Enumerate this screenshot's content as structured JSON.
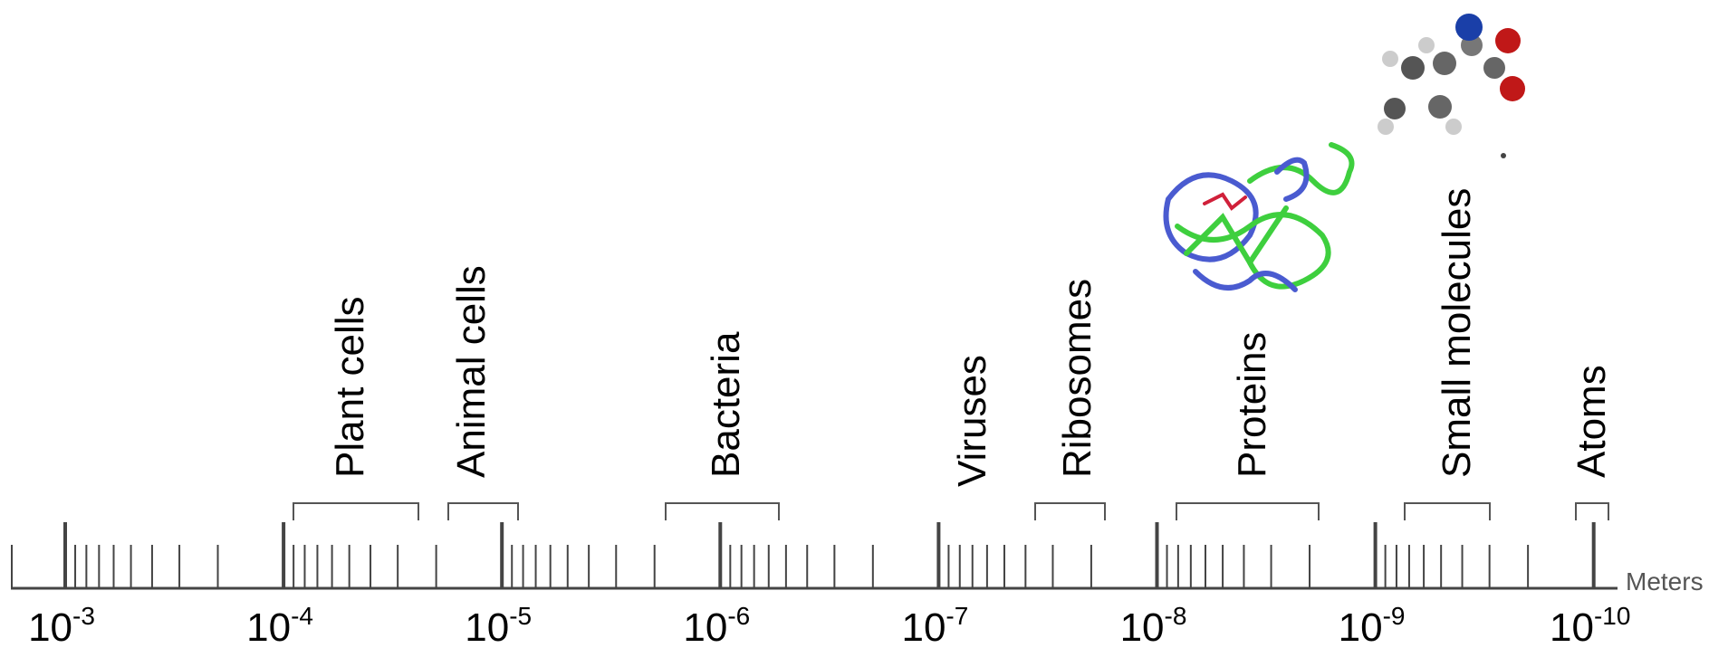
{
  "axis": {
    "unit": "Meters",
    "ticks": [
      {
        "base": "10",
        "exp": "-3"
      },
      {
        "base": "10",
        "exp": "-4"
      },
      {
        "base": "10",
        "exp": "-5"
      },
      {
        "base": "10",
        "exp": "-6"
      },
      {
        "base": "10",
        "exp": "-7"
      },
      {
        "base": "10",
        "exp": "-8"
      },
      {
        "base": "10",
        "exp": "-9"
      },
      {
        "base": "10",
        "exp": "-10"
      }
    ]
  },
  "groups": [
    {
      "label": "Plant cells"
    },
    {
      "label": "Animal cells"
    },
    {
      "label": "Bacteria"
    },
    {
      "label": "Viruses"
    },
    {
      "label": "Ribosomes"
    },
    {
      "label": "Proteins"
    },
    {
      "label": "Small molecules"
    },
    {
      "label": "Atoms"
    }
  ]
}
